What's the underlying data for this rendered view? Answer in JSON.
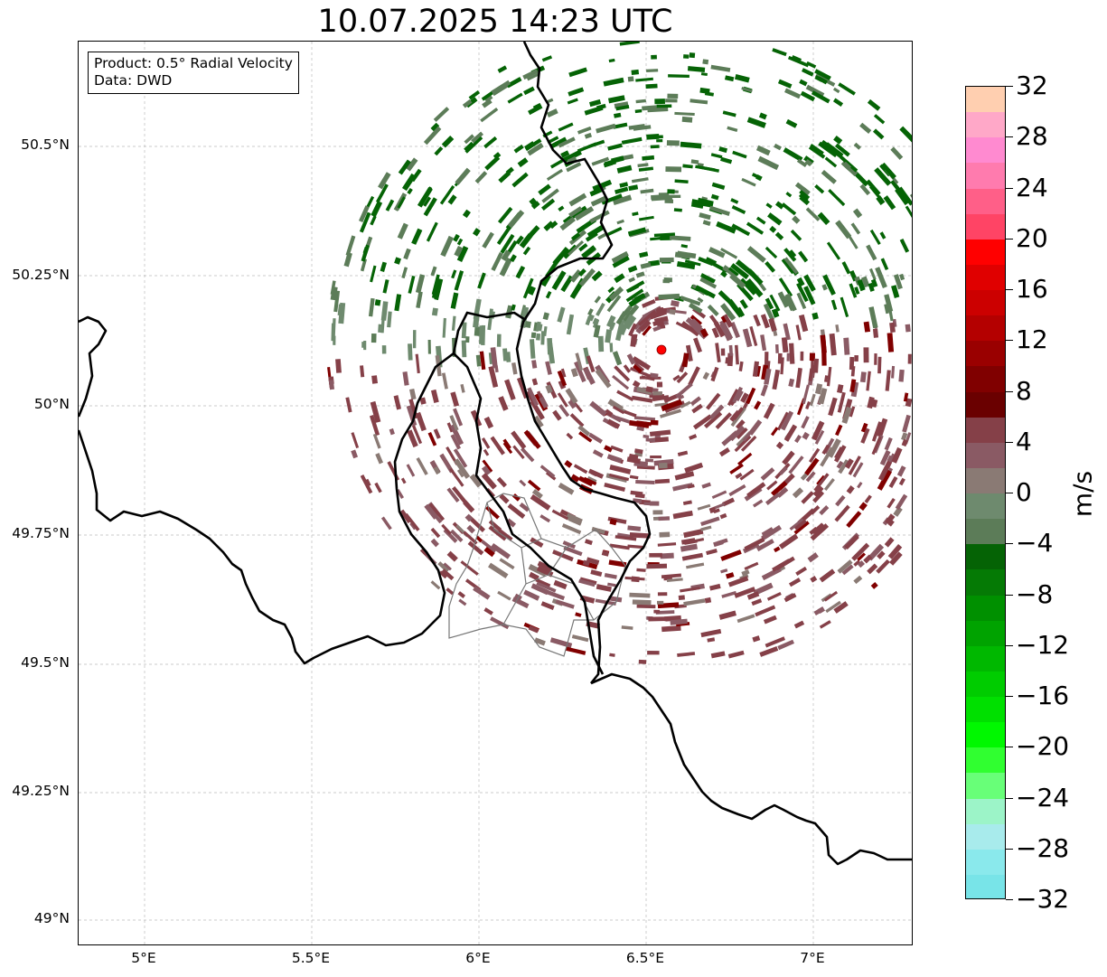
{
  "title": "10.07.2025 14:23 UTC",
  "infobox": {
    "product": "Product: 0.5° Radial Velocity",
    "data_source": "Data: DWD"
  },
  "map": {
    "lon_range": [
      4.8,
      7.3
    ],
    "lat_range": [
      48.95,
      50.7
    ],
    "x_ticks": [
      "5°E",
      "5.5°E",
      "6°E",
      "6.5°E",
      "7°E"
    ],
    "y_ticks": [
      "50.5°N",
      "50.25°N",
      "50°N",
      "49.75°N",
      "49.5°N",
      "49.25°N",
      "49°N"
    ],
    "radar_site_color": "#ff0000"
  },
  "colorbar": {
    "unit": "m/s",
    "range": [
      -32,
      32
    ],
    "labels": [
      "32",
      "28",
      "24",
      "20",
      "16",
      "12",
      "8",
      "4",
      "0",
      "−4",
      "−8",
      "−12",
      "−16",
      "−20",
      "−24",
      "−28",
      "−32"
    ],
    "colors_top_to_bottom": [
      "#ffcfb0",
      "#ffa8c8",
      "#ff8ad0",
      "#ff7bae",
      "#ff5f88",
      "#ff4465",
      "#ff0000",
      "#e00000",
      "#cc0000",
      "#b40000",
      "#9a0000",
      "#800000",
      "#6a0000",
      "#854048",
      "#8a5a64",
      "#8a7a74",
      "#6e8a6e",
      "#5c7c58",
      "#056305",
      "#057a05",
      "#009000",
      "#00a300",
      "#00b800",
      "#00cc00",
      "#00e000",
      "#00f800",
      "#30ff30",
      "#68ff78",
      "#9cf4c8",
      "#a8ebec",
      "#8ae9ec",
      "#78e4e8"
    ]
  }
}
